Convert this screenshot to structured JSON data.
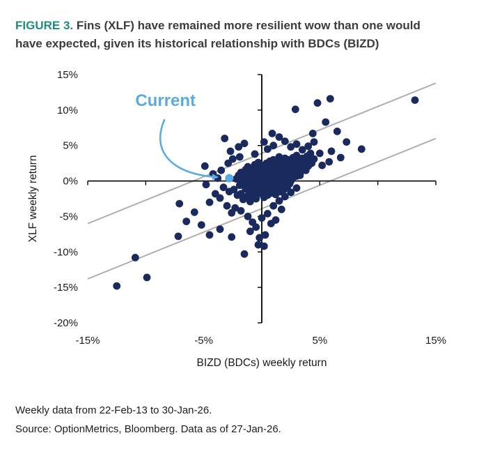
{
  "figure": {
    "label": "FIGURE 3.",
    "title": " Fins (XLF) have remained more resilient wow than one would have expected, given its historical relationship with BDCs (BIZD)"
  },
  "footer": {
    "line1": "Weekly data from 22-Feb-13 to 30-Jan-26.",
    "line2": "Source: OptionMetrics, Bloomberg. Data as of 27-Jan-26."
  },
  "colors": {
    "accent_teal": "#1E8C7E",
    "title_text": "#3C3C3C",
    "point_navy": "#1A2A5C",
    "band_gray": "#AFAFAF",
    "current_blue": "#5AABDF",
    "axis_black": "#000000"
  },
  "chart_data": {
    "type": "scatter",
    "title": "",
    "xlabel": "BIZD (BDCs) weekly return",
    "ylabel": "XLF weekly return",
    "xlim": [
      -15,
      15
    ],
    "ylim": [
      -20,
      15
    ],
    "grid": false,
    "legend": "none",
    "x_tick_values": [
      -15,
      -5,
      5,
      15
    ],
    "x_tick_labels": [
      "-15%",
      "-5%",
      "5%",
      "15%"
    ],
    "x_minor_tick_values": [
      -15,
      -10,
      -5,
      0,
      5,
      10,
      15
    ],
    "y_tick_values": [
      15,
      10,
      5,
      0,
      -5,
      -10,
      -15,
      -20
    ],
    "y_tick_labels": [
      "15%",
      "10%",
      "5%",
      "0%",
      "-5%",
      "-10%",
      "-15%",
      "-20%"
    ],
    "band_lines": [
      {
        "slope": 0.66,
        "intercept": 3.9
      },
      {
        "slope": 0.66,
        "intercept": -3.9
      }
    ],
    "annotation": {
      "label": "Current",
      "label_pos": [
        -8.3,
        10.6
      ],
      "arrow_start": [
        -8.4,
        8.6
      ],
      "arrow_c1": [
        -9.6,
        4.0
      ],
      "arrow_c2": [
        -7.6,
        0.9
      ],
      "arrow_end": [
        -3.85,
        0.55
      ],
      "point": [
        -2.8,
        0.4
      ]
    },
    "points": [
      [
        -2.4,
        -1.2
      ],
      [
        -2.2,
        0.3
      ],
      [
        -2.1,
        -2.0
      ],
      [
        -2.0,
        0.8
      ],
      [
        -1.9,
        -0.6
      ],
      [
        -1.8,
        1.2
      ],
      [
        -1.8,
        -1.8
      ],
      [
        -1.7,
        0.1
      ],
      [
        -1.6,
        -2.6
      ],
      [
        -1.5,
        0.9
      ],
      [
        -1.5,
        -0.3
      ],
      [
        -1.4,
        1.6
      ],
      [
        -1.4,
        -1.1
      ],
      [
        -1.3,
        0.4
      ],
      [
        -1.3,
        -2.2
      ],
      [
        -1.2,
        2.0
      ],
      [
        -1.2,
        -0.8
      ],
      [
        -1.1,
        0.7
      ],
      [
        -1.1,
        -1.5
      ],
      [
        -1.0,
        1.3
      ],
      [
        -1.0,
        -0.2
      ],
      [
        -1.0,
        -2.9
      ],
      [
        -0.9,
        0.5
      ],
      [
        -0.9,
        -1.0
      ],
      [
        -0.8,
        1.8
      ],
      [
        -0.8,
        -0.5
      ],
      [
        -0.8,
        -2.0
      ],
      [
        -0.7,
        0.9
      ],
      [
        -0.7,
        -1.4
      ],
      [
        -0.6,
        2.3
      ],
      [
        -0.6,
        0.2
      ],
      [
        -0.6,
        -0.9
      ],
      [
        -0.5,
        1.1
      ],
      [
        -0.5,
        -0.4
      ],
      [
        -0.5,
        -2.5
      ],
      [
        -0.4,
        1.7
      ],
      [
        -0.4,
        0.6
      ],
      [
        -0.4,
        -1.2
      ],
      [
        -0.3,
        2.6
      ],
      [
        -0.3,
        -0.1
      ],
      [
        -0.3,
        -1.8
      ],
      [
        -0.2,
        1.0
      ],
      [
        -0.2,
        0.3
      ],
      [
        -0.2,
        -0.7
      ],
      [
        -0.1,
        1.9
      ],
      [
        -0.1,
        -0.3
      ],
      [
        -0.1,
        -1.3
      ],
      [
        0.0,
        0.8
      ],
      [
        0.0,
        -0.6
      ],
      [
        0.0,
        2.2
      ],
      [
        0.1,
        0.2
      ],
      [
        0.1,
        -1.6
      ],
      [
        0.1,
        1.4
      ],
      [
        0.2,
        -0.2
      ],
      [
        0.2,
        0.9
      ],
      [
        0.2,
        -2.3
      ],
      [
        0.3,
        1.7
      ],
      [
        0.3,
        -0.9
      ],
      [
        0.3,
        0.4
      ],
      [
        0.4,
        2.5
      ],
      [
        0.4,
        -0.4
      ],
      [
        0.4,
        -1.4
      ],
      [
        0.5,
        1.2
      ],
      [
        0.5,
        0.1
      ],
      [
        0.5,
        -2.0
      ],
      [
        0.6,
        1.9
      ],
      [
        0.6,
        -0.7
      ],
      [
        0.6,
        0.6
      ],
      [
        0.7,
        2.8
      ],
      [
        0.7,
        -0.2
      ],
      [
        0.7,
        -1.1
      ],
      [
        0.8,
        1.5
      ],
      [
        0.8,
        0.3
      ],
      [
        0.8,
        -1.7
      ],
      [
        0.9,
        2.1
      ],
      [
        0.9,
        -0.5
      ],
      [
        0.9,
        0.9
      ],
      [
        1.0,
        3.0
      ],
      [
        1.0,
        0.0
      ],
      [
        1.0,
        -1.3
      ],
      [
        1.1,
        1.8
      ],
      [
        1.1,
        0.5
      ],
      [
        1.1,
        -0.8
      ],
      [
        1.2,
        2.4
      ],
      [
        1.2,
        -0.1
      ],
      [
        1.2,
        -1.9
      ],
      [
        1.3,
        1.1
      ],
      [
        1.3,
        0.7
      ],
      [
        1.3,
        -0.4
      ],
      [
        1.4,
        2.9
      ],
      [
        1.4,
        0.2
      ],
      [
        1.4,
        -1.0
      ],
      [
        1.5,
        1.6
      ],
      [
        1.5,
        -0.6
      ],
      [
        1.5,
        3.4
      ],
      [
        1.6,
        0.8
      ],
      [
        1.6,
        -1.5
      ],
      [
        1.6,
        2.2
      ],
      [
        1.7,
        1.3
      ],
      [
        1.7,
        -0.2
      ],
      [
        1.7,
        0.4
      ],
      [
        1.8,
        2.7
      ],
      [
        1.8,
        -0.9
      ],
      [
        1.8,
        1.0
      ],
      [
        1.9,
        1.9
      ],
      [
        1.9,
        0.1
      ],
      [
        1.9,
        -1.2
      ],
      [
        2.0,
        3.2
      ],
      [
        2.0,
        0.6
      ],
      [
        2.0,
        -0.5
      ],
      [
        2.1,
        1.5
      ],
      [
        2.1,
        2.4
      ],
      [
        2.1,
        -0.1
      ],
      [
        2.2,
        0.9
      ],
      [
        2.2,
        1.8
      ],
      [
        2.2,
        -0.8
      ],
      [
        2.3,
        3.0
      ],
      [
        2.3,
        0.3
      ],
      [
        2.3,
        1.2
      ],
      [
        2.4,
        2.1
      ],
      [
        2.4,
        -0.4
      ],
      [
        2.4,
        0.7
      ],
      [
        2.5,
        1.6
      ],
      [
        2.5,
        2.8
      ],
      [
        2.5,
        0.0
      ],
      [
        2.6,
        1.0
      ],
      [
        2.6,
        2.3
      ],
      [
        2.7,
        0.5
      ],
      [
        2.7,
        1.7
      ],
      [
        2.7,
        3.3
      ],
      [
        2.8,
        0.9
      ],
      [
        2.8,
        2.0
      ],
      [
        2.9,
        1.3
      ],
      [
        2.9,
        2.6
      ],
      [
        3.0,
        0.7
      ],
      [
        3.0,
        1.9
      ],
      [
        3.0,
        3.6
      ],
      [
        3.1,
        1.1
      ],
      [
        3.1,
        2.4
      ],
      [
        3.2,
        1.6
      ],
      [
        3.2,
        3.0
      ],
      [
        3.3,
        2.0
      ],
      [
        3.3,
        0.8
      ],
      [
        3.4,
        2.7
      ],
      [
        3.4,
        1.4
      ],
      [
        3.5,
        3.2
      ],
      [
        3.5,
        1.8
      ],
      [
        3.6,
        2.3
      ],
      [
        3.7,
        2.9
      ],
      [
        3.8,
        1.5
      ],
      [
        3.9,
        3.5
      ],
      [
        4.0,
        2.1
      ],
      [
        4.1,
        2.8
      ],
      [
        4.2,
        3.9
      ],
      [
        4.3,
        2.5
      ],
      [
        4.5,
        3.1
      ],
      [
        -4.8,
        -0.5
      ],
      [
        -4.5,
        -3.0
      ],
      [
        -4.2,
        1.0
      ],
      [
        -4.0,
        -1.8
      ],
      [
        -3.8,
        0.4
      ],
      [
        -3.6,
        -2.4
      ],
      [
        -3.5,
        1.5
      ],
      [
        -3.3,
        -0.9
      ],
      [
        -3.2,
        6.0
      ],
      [
        -3.0,
        -3.5
      ],
      [
        -2.9,
        2.5
      ],
      [
        -2.8,
        -1.5
      ],
      [
        -2.7,
        4.2
      ],
      [
        -2.6,
        -4.5
      ],
      [
        -2.5,
        3.1
      ],
      [
        -2.3,
        -3.8
      ],
      [
        -2.0,
        4.8
      ],
      [
        -1.8,
        -4.2
      ],
      [
        -1.5,
        5.3
      ],
      [
        -1.2,
        -5.0
      ],
      [
        -1.0,
        -7.1
      ],
      [
        -0.8,
        -5.8
      ],
      [
        -0.5,
        -6.5
      ],
      [
        -0.3,
        -9.0
      ],
      [
        -0.2,
        -8.0
      ],
      [
        0.0,
        -5.2
      ],
      [
        0.3,
        -7.6
      ],
      [
        0.5,
        -4.6
      ],
      [
        0.8,
        -6.0
      ],
      [
        1.0,
        -3.5
      ],
      [
        1.2,
        -5.5
      ],
      [
        1.5,
        -2.8
      ],
      [
        1.7,
        -4.0
      ],
      [
        2.0,
        -2.2
      ],
      [
        2.5,
        -1.6
      ],
      [
        3.0,
        -1.0
      ],
      [
        0.5,
        4.5
      ],
      [
        0.2,
        5.5
      ],
      [
        1.0,
        5.0
      ],
      [
        1.5,
        6.2
      ],
      [
        2.0,
        5.6
      ],
      [
        2.5,
        4.8
      ],
      [
        3.0,
        5.2
      ],
      [
        3.5,
        4.4
      ],
      [
        4.0,
        4.9
      ],
      [
        4.5,
        5.5
      ],
      [
        2.9,
        10.1
      ],
      [
        -0.6,
        3.8
      ],
      [
        -1.9,
        3.4
      ],
      [
        -12.5,
        -14.8
      ],
      [
        -10.9,
        -10.8
      ],
      [
        -9.9,
        -13.6
      ],
      [
        -7.2,
        -7.8
      ],
      [
        -6.5,
        -5.7
      ],
      [
        -7.1,
        -3.2
      ],
      [
        -5.8,
        -4.4
      ],
      [
        -5.2,
        -6.2
      ],
      [
        -4.5,
        -7.6
      ],
      [
        -3.6,
        -6.8
      ],
      [
        -2.6,
        -7.9
      ],
      [
        -1.5,
        -10.3
      ],
      [
        0.2,
        -9.2
      ],
      [
        13.2,
        11.4
      ],
      [
        5.9,
        11.6
      ],
      [
        4.8,
        11.0
      ],
      [
        7.3,
        5.5
      ],
      [
        8.6,
        4.5
      ],
      [
        6.5,
        7.0
      ],
      [
        5.5,
        8.3
      ],
      [
        4.4,
        6.7
      ],
      [
        5.0,
        3.9
      ],
      [
        5.8,
        2.7
      ],
      [
        6.8,
        3.3
      ],
      [
        5.2,
        2.2
      ],
      [
        6.0,
        4.2
      ],
      [
        0.9,
        6.7
      ],
      [
        -4.9,
        2.1
      ]
    ]
  }
}
